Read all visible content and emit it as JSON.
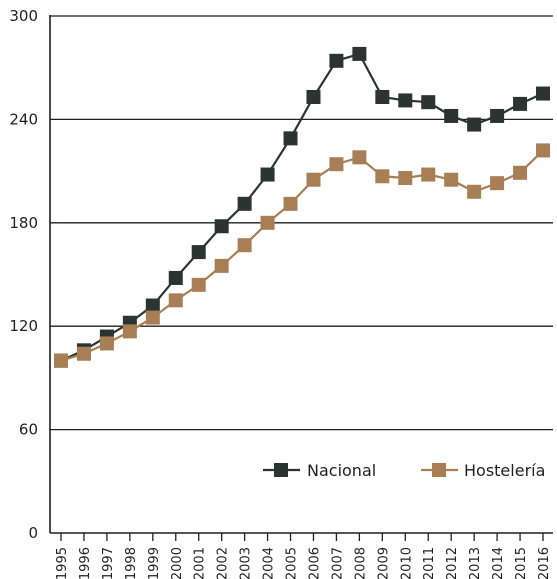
{
  "chart_data": {
    "type": "line",
    "title": "",
    "xlabel": "",
    "ylabel": "",
    "ylim": [
      0,
      300
    ],
    "yticks": [
      0,
      60,
      120,
      180,
      240,
      300
    ],
    "grid": "horizontal",
    "legend_position": "bottom-right",
    "categories": [
      "1995",
      "1996",
      "1997",
      "1998",
      "1999",
      "2000",
      "2001",
      "2002",
      "2003",
      "2004",
      "2005",
      "2006",
      "2007",
      "2008",
      "2009",
      "2010",
      "2011",
      "2012",
      "2013",
      "2014",
      "2015",
      "2016"
    ],
    "series": [
      {
        "name": "Nacional",
        "color": "#2b3431",
        "marker": "square",
        "values": [
          100,
          106,
          114,
          122,
          132,
          148,
          163,
          178,
          191,
          208,
          229,
          253,
          274,
          278,
          253,
          251,
          250,
          242,
          237,
          242,
          249,
          255
        ]
      },
      {
        "name": "Hostelería",
        "color": "#a87f55",
        "marker": "square",
        "values": [
          100,
          104,
          110,
          117,
          125,
          135,
          144,
          155,
          167,
          180,
          191,
          205,
          214,
          218,
          207,
          206,
          208,
          205,
          198,
          203,
          209,
          222
        ]
      }
    ]
  }
}
